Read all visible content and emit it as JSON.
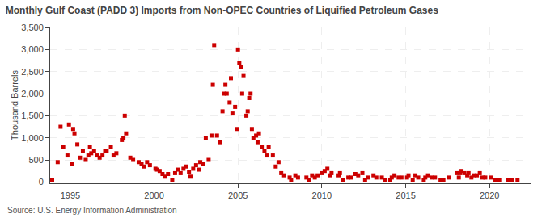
{
  "chart_data": {
    "type": "scatter",
    "title": "Monthly Gulf Coast (PADD 3) Imports from Non-OPEC Countries of Liquified Petroleum Gases",
    "ylabel": "Thousand Barrels",
    "annotations": [
      "Source: U.S. Energy Information Administration"
    ],
    "color": "#CC0000",
    "marker": "square",
    "grid": true,
    "xlim": [
      1993.8,
      2022.5
    ],
    "ylim": [
      -30,
      3500
    ],
    "xticks": [
      1995,
      2000,
      2005,
      2010,
      2015,
      2020
    ],
    "yticks": [
      0,
      500,
      {
        "value": 1000,
        "label": "1,000"
      },
      {
        "value": 1500,
        "label": "1,500"
      },
      {
        "value": 2000,
        "label": "2,000"
      },
      {
        "value": 2500,
        "label": "2,500"
      },
      {
        "value": 3000,
        "label": "3,000"
      },
      {
        "value": 3500,
        "label": "3,500"
      }
    ],
    "x": [
      1993.92,
      1994.25,
      1994.42,
      1994.58,
      1994.83,
      1994.92,
      1995.08,
      1995.17,
      1995.25,
      1995.42,
      1995.58,
      1995.75,
      1995.92,
      1996.08,
      1996.17,
      1996.25,
      1996.42,
      1996.58,
      1996.75,
      1996.92,
      1997.08,
      1997.17,
      1997.42,
      1997.58,
      1997.75,
      1998.08,
      1998.17,
      1998.25,
      1998.33,
      1998.58,
      1998.75,
      1999.08,
      1999.25,
      1999.42,
      1999.58,
      1999.75,
      2000.08,
      2000.17,
      2000.33,
      2000.5,
      2000.67,
      2000.83,
      2001.08,
      2001.25,
      2001.42,
      2001.58,
      2001.75,
      2001.92,
      2002.08,
      2002.17,
      2002.33,
      2002.5,
      2002.67,
      2002.75,
      2002.92,
      2003.08,
      2003.25,
      2003.42,
      2003.5,
      2003.58,
      2003.75,
      2003.92,
      2004.08,
      2004.17,
      2004.25,
      2004.33,
      2004.5,
      2004.58,
      2004.67,
      2004.83,
      2004.92,
      2005.0,
      2005.08,
      2005.17,
      2005.25,
      2005.33,
      2005.5,
      2005.58,
      2005.67,
      2005.75,
      2005.83,
      2005.92,
      2006.08,
      2006.17,
      2006.25,
      2006.42,
      2006.58,
      2006.75,
      2006.83,
      2007.08,
      2007.25,
      2007.42,
      2007.58,
      2007.75,
      2008.08,
      2008.17,
      2008.42,
      2008.58,
      2009.08,
      2009.25,
      2009.42,
      2009.58,
      2009.75,
      2010.0,
      2010.17,
      2010.33,
      2010.5,
      2010.58,
      2011.0,
      2011.08,
      2011.25,
      2011.58,
      2011.75,
      2012.0,
      2012.17,
      2012.42,
      2012.58,
      2012.75,
      2013.08,
      2013.25,
      2013.58,
      2013.75,
      2014.08,
      2014.17,
      2014.33,
      2014.58,
      2014.75,
      2015.08,
      2015.17,
      2015.42,
      2015.58,
      2015.75,
      2016.08,
      2016.17,
      2016.33,
      2016.58,
      2016.75,
      2017.08,
      2017.25,
      2017.58,
      2018.08,
      2018.17,
      2018.25,
      2018.33,
      2018.5,
      2018.67,
      2018.75,
      2018.92,
      2019.08,
      2019.25,
      2019.42,
      2019.58,
      2019.75,
      2020.08,
      2020.33,
      2020.58,
      2021.08,
      2021.33,
      2021.67
    ],
    "values": [
      50,
      450,
      1250,
      800,
      600,
      1300,
      400,
      1200,
      1100,
      850,
      550,
      700,
      500,
      600,
      800,
      650,
      700,
      600,
      550,
      600,
      700,
      700,
      800,
      600,
      650,
      950,
      1000,
      1500,
      1100,
      550,
      500,
      450,
      400,
      350,
      450,
      380,
      300,
      280,
      250,
      180,
      120,
      180,
      50,
      200,
      280,
      200,
      300,
      350,
      220,
      120,
      300,
      380,
      280,
      450,
      400,
      1000,
      500,
      1050,
      2200,
      3100,
      1050,
      900,
      1600,
      2000,
      2200,
      2000,
      1800,
      2350,
      1550,
      1700,
      1200,
      3000,
      2700,
      2600,
      2000,
      2400,
      1500,
      1600,
      1900,
      2000,
      1200,
      1000,
      1050,
      900,
      1100,
      800,
      700,
      600,
      800,
      600,
      350,
      450,
      200,
      150,
      100,
      50,
      150,
      100,
      100,
      50,
      150,
      100,
      150,
      200,
      250,
      300,
      150,
      200,
      150,
      200,
      50,
      100,
      100,
      180,
      150,
      200,
      50,
      100,
      150,
      100,
      100,
      50,
      50,
      100,
      150,
      100,
      100,
      100,
      150,
      50,
      150,
      100,
      50,
      100,
      150,
      100,
      100,
      50,
      50,
      100,
      200,
      100,
      200,
      250,
      200,
      150,
      200,
      100,
      150,
      150,
      200,
      100,
      100,
      100,
      50,
      50,
      50,
      50,
      50
    ]
  }
}
